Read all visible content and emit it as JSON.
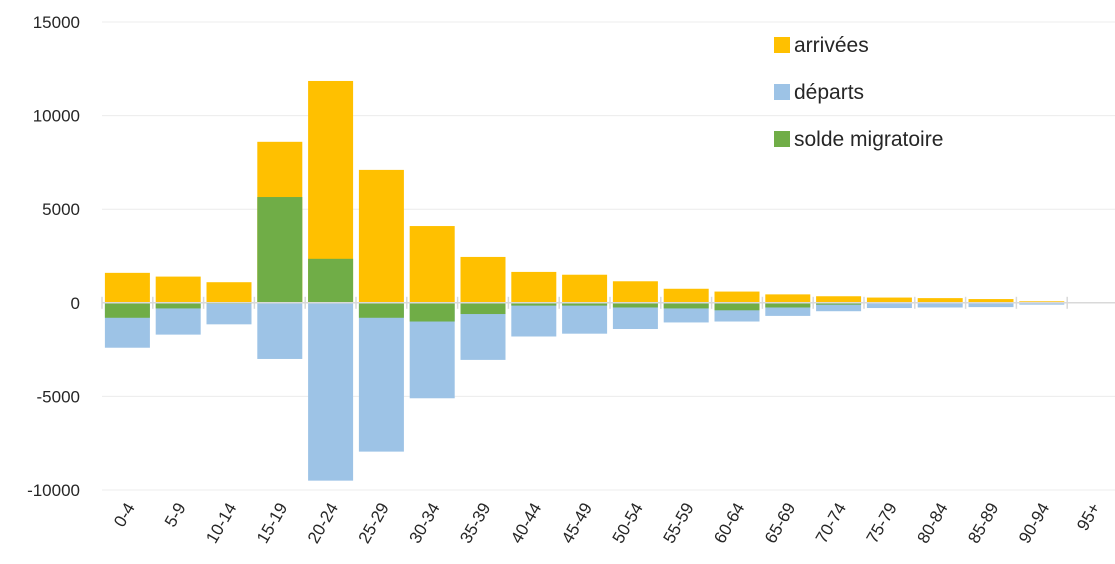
{
  "chart_data": {
    "type": "bar",
    "categories": [
      "0-4",
      "5-9",
      "10-14",
      "15-19",
      "20-24",
      "25-29",
      "30-34",
      "35-39",
      "40-44",
      "45-49",
      "50-54",
      "55-59",
      "60-64",
      "65-69",
      "70-74",
      "75-79",
      "80-84",
      "85-89",
      "90-94",
      "95+"
    ],
    "series": [
      {
        "name": "arrivées",
        "color": "#FFC000",
        "values": [
          1600,
          1400,
          1100,
          8600,
          11850,
          7100,
          4100,
          2450,
          1650,
          1500,
          1150,
          750,
          600,
          450,
          350,
          280,
          250,
          200,
          80,
          0
        ]
      },
      {
        "name": "départs",
        "color": "#9DC3E6",
        "values": [
          -2400,
          -1700,
          -1150,
          -3000,
          -9500,
          -7950,
          -5100,
          -3050,
          -1800,
          -1650,
          -1400,
          -1050,
          -1000,
          -700,
          -450,
          -280,
          -250,
          -230,
          -100,
          0
        ]
      },
      {
        "name": "solde migratoire",
        "color": "#70AD47",
        "values": [
          -800,
          -300,
          -50,
          5650,
          2350,
          -800,
          -1000,
          -600,
          -150,
          -150,
          -250,
          -300,
          -400,
          -250,
          -100,
          0,
          0,
          -30,
          -20,
          0
        ]
      }
    ],
    "yticks": [
      15000,
      10000,
      5000,
      0,
      -5000,
      -10000
    ],
    "ylim": [
      -10000,
      15000
    ],
    "title": "",
    "xlabel": "",
    "ylabel": "",
    "grid": true,
    "legend": "top-right"
  }
}
